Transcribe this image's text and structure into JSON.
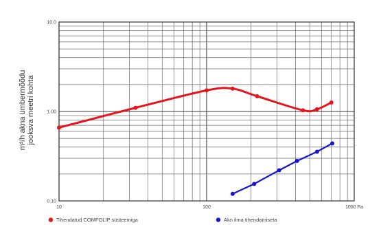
{
  "chart_data": {
    "type": "line",
    "title": "",
    "xlabel": "",
    "ylabel": "m³/h akna ümbermõõdu jooksva meetri kohta",
    "xscale": "log",
    "yscale": "log",
    "xlim": [
      10,
      1000
    ],
    "ylim": [
      0.1,
      10
    ],
    "x_ticks": [
      {
        "value": 10,
        "label": "10"
      },
      {
        "value": 100,
        "label": "100"
      },
      {
        "value": 1000,
        "label": "1000 Pa"
      }
    ],
    "y_ticks": [
      {
        "value": 0.1,
        "label": "0.10"
      },
      {
        "value": 1,
        "label": "1.00"
      },
      {
        "value": 10,
        "label": "10.0"
      }
    ],
    "grid": true,
    "legend_position": "bottom",
    "series": [
      {
        "name": "Tihendatud COMFOLIP süsteemiga",
        "color": "#e8141c",
        "points": [
          [
            10,
            0.66
          ],
          [
            33,
            1.1
          ],
          [
            100,
            1.72
          ],
          [
            150,
            1.8
          ],
          [
            220,
            1.48
          ],
          [
            450,
            1.03
          ],
          [
            560,
            1.06
          ],
          [
            700,
            1.26
          ]
        ]
      },
      {
        "name": "Akn ilma tihendamiseta",
        "color": "#1414d2",
        "points": [
          [
            150,
            0.12
          ],
          [
            210,
            0.155
          ],
          [
            310,
            0.22
          ],
          [
            410,
            0.28
          ],
          [
            560,
            0.355
          ],
          [
            710,
            0.44
          ]
        ]
      }
    ]
  }
}
